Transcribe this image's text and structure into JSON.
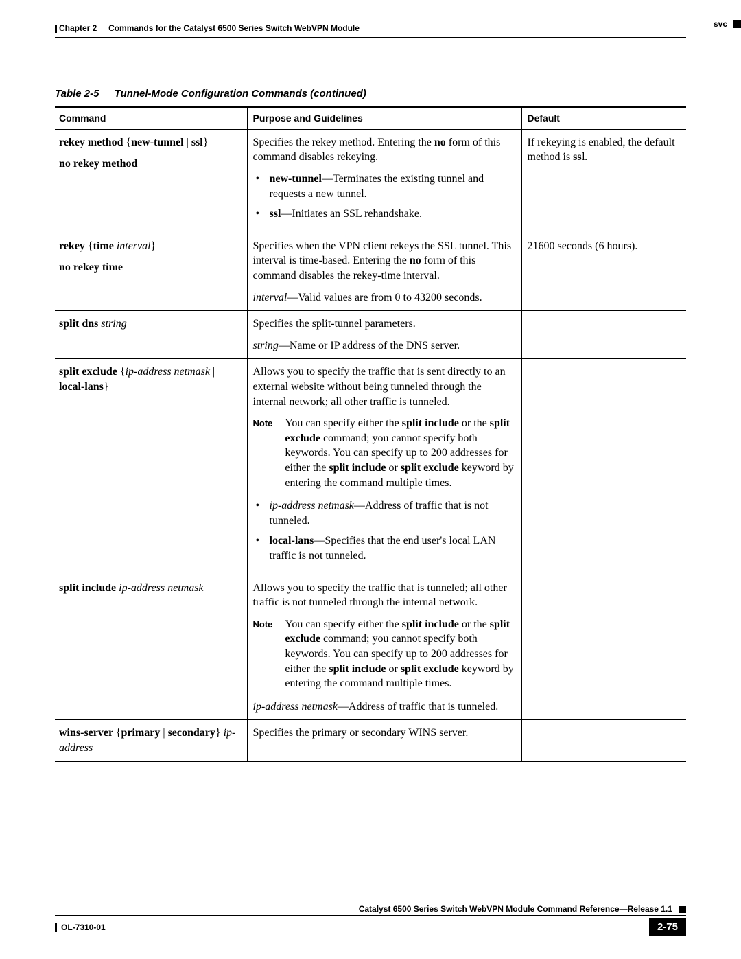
{
  "header": {
    "chapter": "Chapter 2",
    "chapter_title": "Commands for the Catalyst 6500 Series Switch WebVPN Module",
    "right_label": "svc"
  },
  "table": {
    "caption_number": "Table 2-5",
    "caption_title": "Tunnel-Mode Configuration Commands (continued)",
    "headers": {
      "c1": "Command",
      "c2": "Purpose and Guidelines",
      "c3": "Default"
    }
  },
  "rows": {
    "r1": {
      "cmd_p1_a": "rekey method ",
      "cmd_p1_b": "{",
      "cmd_p1_c": "new-tunnel ",
      "cmd_p1_pipe": "| ",
      "cmd_p1_d": "ssl",
      "cmd_p1_e": "}",
      "cmd_p2": "no rekey method",
      "purp_p1_a": "Specifies the rekey method. Entering the ",
      "purp_p1_b": "no",
      "purp_p1_c": " form of this command disables rekeying.",
      "b1_a": "new-tunnel",
      "b1_b": "—Terminates the existing tunnel and requests a new tunnel.",
      "b2_a": "ssl",
      "b2_b": "—Initiates an SSL rehandshake.",
      "def_a": "If rekeying is enabled, the default method is ",
      "def_b": "ssl",
      "def_c": "."
    },
    "r2": {
      "cmd_p1_a": "rekey ",
      "cmd_p1_b": "{",
      "cmd_p1_c": "time ",
      "cmd_p1_d": "interval",
      "cmd_p1_e": "}",
      "cmd_p2": "no rekey time",
      "purp_p1_a": "Specifies when the VPN client rekeys the SSL tunnel. This interval is time-based. Entering the ",
      "purp_p1_b": "no",
      "purp_p1_c": " form of this command disables the rekey-time interval.",
      "purp_p2_a": "interval",
      "purp_p2_b": "—Valid values are from 0 to 43200 seconds.",
      "def": "21600 seconds (6 hours)."
    },
    "r3": {
      "cmd_a": "split dns ",
      "cmd_b": "string",
      "purp_p1": "Specifies the split-tunnel parameters.",
      "purp_p2_a": "string",
      "purp_p2_b": "—Name or IP address of the DNS server."
    },
    "r4": {
      "cmd_a": "split exclude ",
      "cmd_b": "{",
      "cmd_c": "ip-address netmask ",
      "cmd_pipe": "| ",
      "cmd_d": "local-lans",
      "cmd_e": "}",
      "purp_p1": "Allows you to specify the traffic that is sent directly to an external website without being tunneled through the internal network; all other traffic is tunneled.",
      "note_label": "Note",
      "note_a": "You can specify either the ",
      "note_b": "split include",
      "note_c": " or the ",
      "note_d": "split exclude",
      "note_e": " command; you cannot specify both keywords. You can specify up to 200 addresses for either the ",
      "note_f": "split include",
      "note_g": " or ",
      "note_h": "split exclude",
      "note_i": " keyword by entering the command multiple times.",
      "b1_a": "ip-address netmask",
      "b1_b": "—Address of traffic that is not tunneled.",
      "b2_a": "local-lans",
      "b2_b": "—Specifies that the end user's local LAN traffic is not tunneled."
    },
    "r5": {
      "cmd_a": "split include ",
      "cmd_b": "ip-address netmask",
      "purp_p1": "Allows you to specify the traffic that is tunneled; all other traffic is not tunneled through the internal network.",
      "note_label": "Note",
      "note_a": "You can specify either the ",
      "note_b": "split include",
      "note_c": " or the ",
      "note_d": "split exclude",
      "note_e": " command; you cannot specify both keywords. You can specify up to 200 addresses for either the ",
      "note_f": "split include",
      "note_g": " or ",
      "note_h": "split exclude",
      "note_i": " keyword by entering the command multiple times.",
      "purp_p2_a": "ip-address netmask",
      "purp_p2_b": "—Address of traffic that is tunneled."
    },
    "r6": {
      "cmd_a": "wins-server ",
      "cmd_b": "{",
      "cmd_c": "primary ",
      "cmd_pipe": "| ",
      "cmd_d": "secondary",
      "cmd_e": "} ",
      "cmd_f": "ip-address",
      "purp": "Specifies the primary or secondary WINS server."
    }
  },
  "footer": {
    "title": "Catalyst 6500 Series Switch WebVPN Module Command Reference—Release 1.1",
    "doc_id": "OL-7310-01",
    "page_num": "2-75"
  }
}
